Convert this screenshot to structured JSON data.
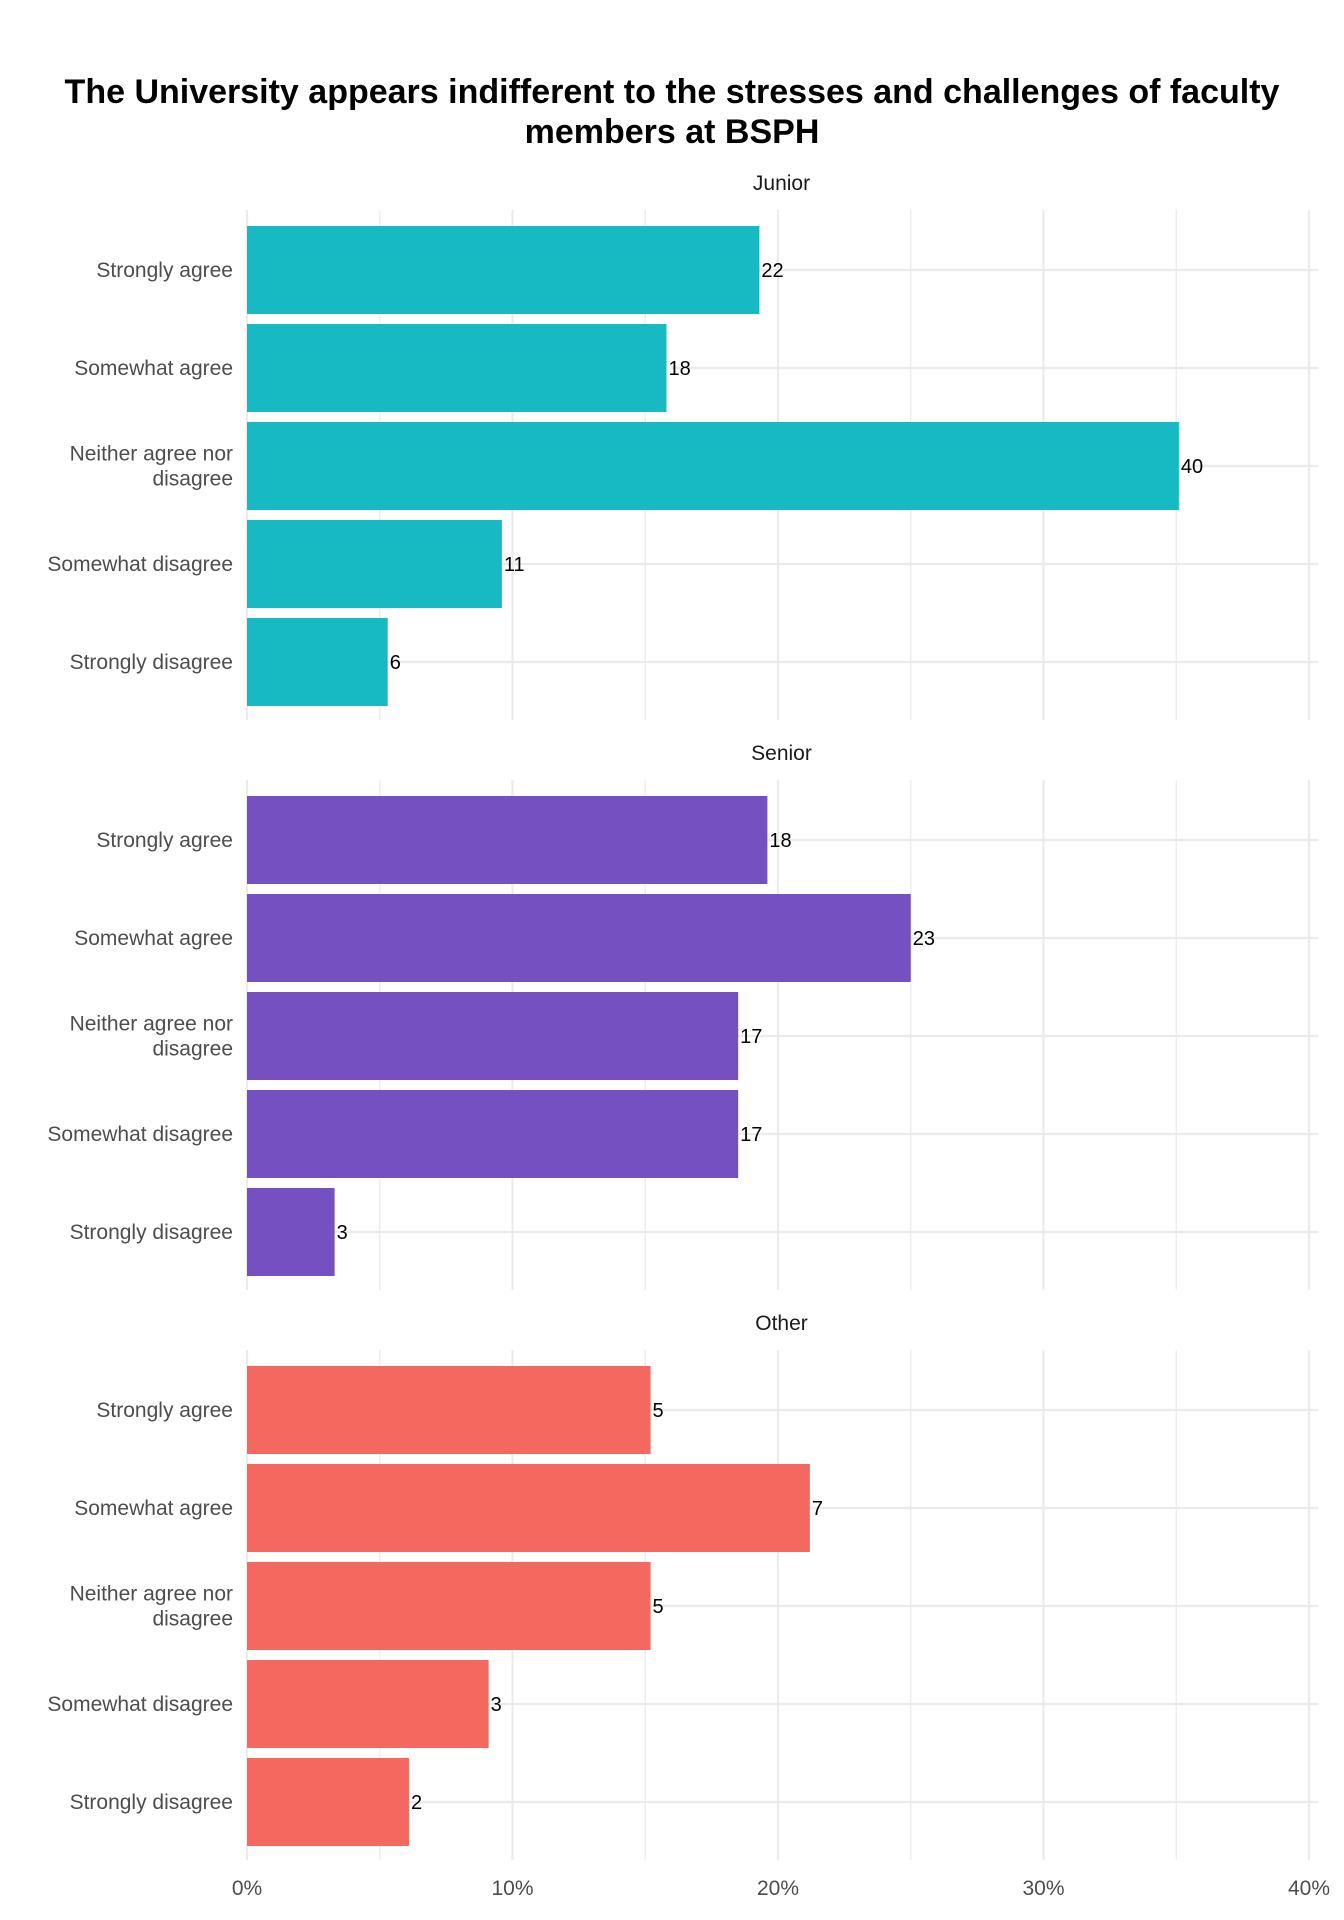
{
  "chart_data": {
    "type": "bar",
    "orientation": "horizontal",
    "title": "The University appears indifferent to the stresses and challenges of faculty members at BSPH",
    "categories": [
      "Strongly agree",
      "Somewhat agree",
      "Neither agree nor disagree",
      "Somewhat disagree",
      "Strongly disagree"
    ],
    "x_ticks": [
      "0%",
      "10%",
      "20%",
      "30%",
      "40%"
    ],
    "xlim": [
      0,
      40
    ],
    "grid": true,
    "legend": "none",
    "facets": [
      {
        "name": "Junior",
        "color": "#17b9c2",
        "percent": [
          19.3,
          15.8,
          35.1,
          9.6,
          5.3
        ],
        "counts": [
          "22",
          "18",
          "40",
          "11",
          "6"
        ]
      },
      {
        "name": "Senior",
        "color": "#7550c1",
        "percent": [
          19.6,
          25.0,
          18.5,
          18.5,
          3.3
        ],
        "counts": [
          "18",
          "23",
          "17",
          "17",
          "3"
        ]
      },
      {
        "name": "Other",
        "color": "#f4685f",
        "percent": [
          15.2,
          21.2,
          15.2,
          9.1,
          6.1
        ],
        "counts": [
          "5",
          "7",
          "5",
          "3",
          "2"
        ]
      }
    ]
  }
}
